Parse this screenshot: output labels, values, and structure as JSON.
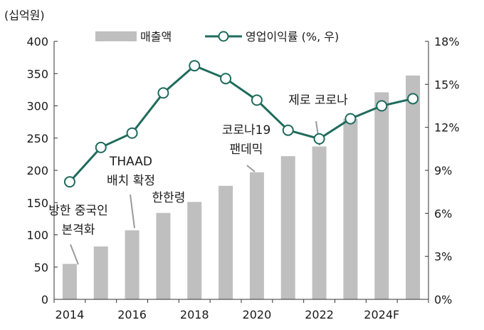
{
  "chart_data": {
    "type": "bar+line",
    "unit_label": "(십억원)",
    "years": [
      2014,
      2015,
      2016,
      2017,
      2018,
      2019,
      2020,
      2021,
      2022,
      2023,
      2024,
      2025
    ],
    "x_tick_labels": [
      "2014",
      "2016",
      "2018",
      "2020",
      "2022",
      "2024F"
    ],
    "series": [
      {
        "name": "매출액",
        "kind": "bar",
        "axis": "left",
        "color": "#bfbfbf",
        "values": [
          55,
          82,
          107,
          134,
          151,
          176,
          197,
          222,
          237,
          280,
          321,
          347
        ]
      },
      {
        "name": "영업이익률 (%, 우)",
        "kind": "line",
        "axis": "right",
        "color": "#1f6b5c",
        "values": [
          8.2,
          10.6,
          11.6,
          14.4,
          16.3,
          15.4,
          13.9,
          11.8,
          11.2,
          12.6,
          13.5,
          14.0
        ]
      }
    ],
    "y_left": {
      "min": 0,
      "max": 400,
      "ticks": [
        0,
        50,
        100,
        150,
        200,
        250,
        300,
        350,
        400
      ]
    },
    "y_right": {
      "min": 0,
      "max": 18,
      "ticks": [
        "0%",
        "3%",
        "6%",
        "9%",
        "12%",
        "15%",
        "18%"
      ]
    },
    "legend_position": "top",
    "annotations": [
      {
        "lines": [
          "방한 중국인",
          "본격화"
        ],
        "year_index": 0
      },
      {
        "lines": [
          "THAAD",
          "배치 확정"
        ],
        "year_index": 2
      },
      {
        "lines": [
          "한한령"
        ],
        "year_index": 3
      },
      {
        "lines": [
          "코로나19",
          "팬데믹"
        ],
        "year_index": 6
      },
      {
        "lines": [
          "제로 코로나"
        ],
        "year_index": 8
      }
    ]
  }
}
